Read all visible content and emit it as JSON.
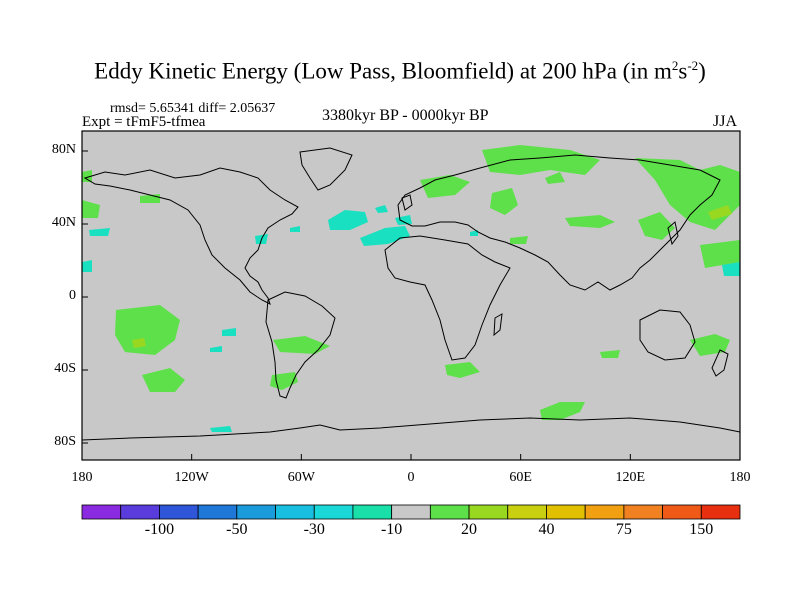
{
  "title": {
    "main": "Eddy Kinetic Energy (Low Pass, Bloomfield) at 200 hPa (in m",
    "sup1": "2",
    "mid": "s",
    "sup2": "-2",
    "end": ")"
  },
  "stats": "rmsd= 5.65341 diff= 2.05637",
  "experiment": "Expt = tFmF5-tfmea",
  "period": "3380kyr BP - 0000kyr BP",
  "season": "JJA",
  "y_ticks": [
    {
      "label": "80N",
      "lat": 80
    },
    {
      "label": "40N",
      "lat": 40
    },
    {
      "label": "0",
      "lat": 0
    },
    {
      "label": "40S",
      "lat": -40
    },
    {
      "label": "80S",
      "lat": -80
    }
  ],
  "x_ticks": [
    {
      "label": "180",
      "lon": -180
    },
    {
      "label": "120W",
      "lon": -120
    },
    {
      "label": "60W",
      "lon": -60
    },
    {
      "label": "0",
      "lon": 0
    },
    {
      "label": "60E",
      "lon": 60
    },
    {
      "label": "120E",
      "lon": 120
    },
    {
      "label": "180",
      "lon": 180
    }
  ],
  "colorbar": {
    "colors": [
      "#8a2be2",
      "#5a3cdc",
      "#2f55d8",
      "#1f78d8",
      "#1a9cdc",
      "#19bfe0",
      "#1ad8d8",
      "#18e0a8",
      "#c8c8c8",
      "#5ee04a",
      "#98d820",
      "#c8d010",
      "#e0c000",
      "#f0a010",
      "#f08020",
      "#f05a18",
      "#e83010"
    ],
    "labels": [
      {
        "text": "-100",
        "index": 2
      },
      {
        "text": "-50",
        "index": 4
      },
      {
        "text": "-30",
        "index": 6
      },
      {
        "text": "-10",
        "index": 8
      },
      {
        "text": "20",
        "index": 10
      },
      {
        "text": "40",
        "index": 12
      },
      {
        "text": "75",
        "index": 14
      },
      {
        "text": "150",
        "index": 16
      }
    ]
  },
  "map_colors": {
    "ocean_fill": "#c8c8c8",
    "positive": "#5ee04a",
    "strong_positive": "#98d820",
    "negative": "#18e0c0",
    "coastline": "#000000"
  }
}
